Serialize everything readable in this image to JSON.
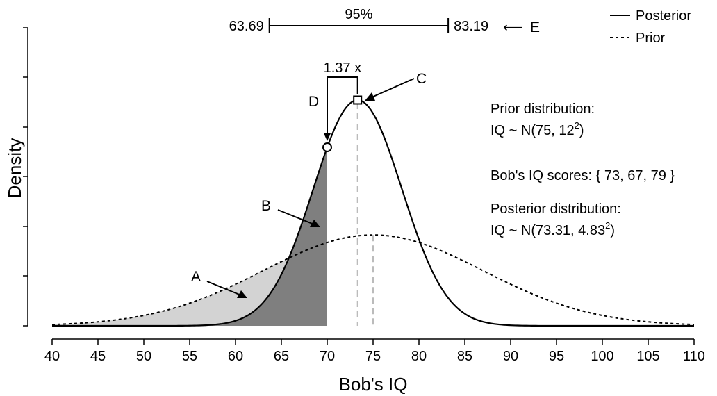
{
  "chart_data": {
    "type": "line",
    "xlabel": "Bob's IQ",
    "ylabel": "Density",
    "xlim": [
      40,
      110
    ],
    "x_ticks": [
      40,
      45,
      50,
      55,
      60,
      65,
      70,
      75,
      80,
      85,
      90,
      95,
      100,
      105,
      110
    ],
    "series": [
      {
        "name": "Posterior",
        "distribution": "normal",
        "mean": 73.31,
        "sd": 4.83,
        "line_style": "solid",
        "color": "#000000"
      },
      {
        "name": "Prior",
        "distribution": "normal",
        "mean": 75,
        "sd": 12,
        "line_style": "dotted",
        "color": "#000000"
      }
    ],
    "legend": {
      "position": "top-right",
      "entries": [
        "Posterior",
        "Prior"
      ]
    },
    "shaded_regions": [
      {
        "label": "A",
        "description_x_max": 70,
        "under": "Prior",
        "color": "#d3d3d3"
      },
      {
        "label": "B",
        "description_x_max": 70,
        "under": "Posterior",
        "color": "#808080"
      }
    ],
    "reference_lines": [
      {
        "x": 73.31,
        "style": "dashed",
        "color": "#bbbbbb"
      },
      {
        "x": 75,
        "style": "dashed",
        "color": "#bbbbbb"
      }
    ],
    "credible_interval": {
      "label": "95%",
      "lower": 63.69,
      "upper": 83.19,
      "lower_text": "63.69",
      "upper_text": "83.19"
    },
    "points": [
      {
        "label": "C",
        "x": 73.31,
        "marker": "square"
      },
      {
        "label": "D",
        "x": 70,
        "marker": "circle"
      }
    ],
    "ratio_label": "1.37 x",
    "letters": {
      "A": "A",
      "B": "B",
      "C": "C",
      "D": "D",
      "E": "E"
    },
    "arrow_glyph": "⟵",
    "annotations": {
      "prior_heading": "Prior distribution:",
      "prior_formula": "IQ ~ N(75, 12",
      "prior_exp": "2",
      "prior_close": ")",
      "scores": "Bob's IQ scores: { 73, 67, 79 }",
      "post_heading": "Posterior distribution:",
      "post_formula": "IQ ~ N(73.31, 4.83",
      "post_exp": "2",
      "post_close": ")"
    },
    "grid": false
  }
}
